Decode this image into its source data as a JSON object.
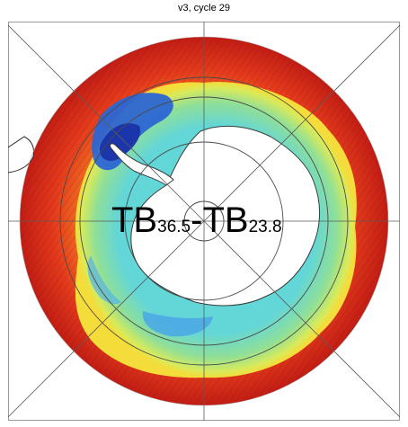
{
  "title": "v3, cycle 29",
  "overlay": {
    "tb_a": "TB",
    "sub_a": "36.5",
    "dash": "-",
    "tb_b": "TB",
    "sub_b": "23.8"
  },
  "colors": {
    "ocean_outer": "#e8321f",
    "ocean_mid": "#f2a12a",
    "ice_edge": "#f7e84a",
    "ice_green": "#9fe08a",
    "ice_cyan": "#6fdad8",
    "ice_blue": "#3a8fe0",
    "ice_deep": "#1a3fb8",
    "land": "#ffffff",
    "grid": "#5a5a5a"
  }
}
